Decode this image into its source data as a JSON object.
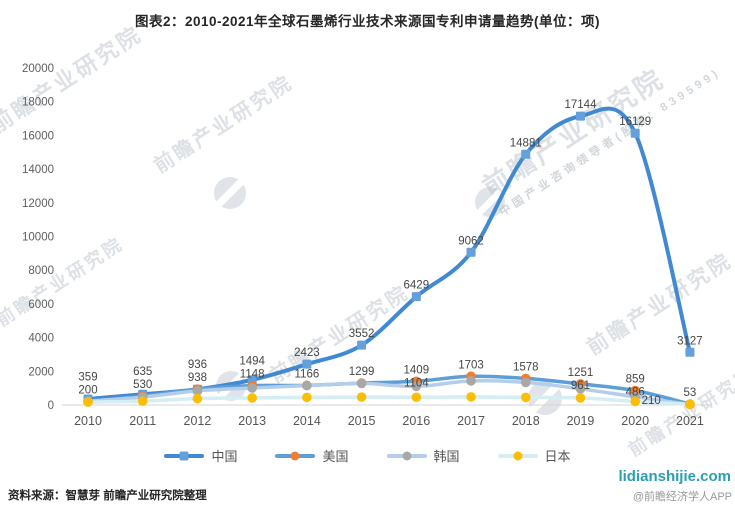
{
  "title": "图表2：2010-2021年全球石墨烯行业技术来源国专利申请量趋势(单位：项)",
  "source_note": "资料来源：智慧芽 前瞻产业研究院整理",
  "footer": {
    "site": "lidianshijie.com",
    "handle": "@前瞻经济学人APP"
  },
  "watermark": {
    "text": "前瞻产业研究院",
    "subtext": "中国产业咨询领导者(股票：839599)"
  },
  "colors": {
    "title_text": "#262626",
    "axis_line": "#d4d4d4",
    "axis_text": "#5e5e5e",
    "data_label_text": "#454545",
    "site_text": "#2aa0af",
    "handle_text": "#999999"
  },
  "chart_data": {
    "type": "line",
    "smooth": true,
    "grid": false,
    "legend_position": "bottom",
    "x": [
      "2010",
      "2011",
      "2012",
      "2013",
      "2014",
      "2015",
      "2016",
      "2017",
      "2018",
      "2019",
      "2020",
      "2021"
    ],
    "ylim": [
      0,
      20000
    ],
    "y_ticks": [
      0,
      2000,
      4000,
      6000,
      8000,
      10000,
      12000,
      14000,
      16000,
      18000,
      20000
    ],
    "series": [
      {
        "id": "china",
        "name": "中国",
        "marker": "square",
        "line_color": "#4289d3",
        "marker_color": "#64a0dc",
        "line_width": 4,
        "values": [
          359,
          635,
          936,
          1494,
          2423,
          3552,
          6429,
          9062,
          14881,
          17144,
          16129,
          3127
        ],
        "labels": [
          "359",
          "635",
          "936",
          "1494",
          "2423",
          "3552",
          "6429",
          "9062",
          "14881",
          "17144",
          "16129",
          "3127"
        ]
      },
      {
        "id": "usa",
        "name": "美国",
        "marker": "circle",
        "line_color": "#5e9ed8",
        "marker_color": "#ee7e30",
        "line_width": 3.5,
        "values": [
          200,
          530,
          938,
          1148,
          1166,
          1299,
          1409,
          1703,
          1578,
          1251,
          859,
          53
        ],
        "labels": [
          "200",
          "530",
          "938",
          "1148",
          "1166",
          "1299",
          "1409",
          "1703",
          "1578",
          "1251",
          "859",
          "53"
        ]
      },
      {
        "id": "korea",
        "name": "韩国",
        "marker": "circle",
        "line_color": "#b3cdea",
        "marker_color": "#a8a8a8",
        "line_width": 3.5,
        "values": [
          230,
          470,
          840,
          1010,
          1150,
          1280,
          1104,
          1430,
          1340,
          961,
          486,
          30
        ],
        "labels": [
          "",
          "",
          "",
          "",
          "",
          "",
          "1104",
          "",
          "",
          "961",
          "486",
          ""
        ]
      },
      {
        "id": "japan",
        "name": "日本",
        "marker": "circle",
        "line_color": "#d5eef3",
        "marker_color": "#fcbe03",
        "line_width": 3.5,
        "values": [
          170,
          230,
          380,
          420,
          450,
          470,
          460,
          480,
          450,
          420,
          210,
          40
        ],
        "labels": [
          "",
          "",
          "",
          "",
          "",
          "",
          "",
          "",
          "",
          "",
          "210",
          ""
        ]
      }
    ]
  }
}
